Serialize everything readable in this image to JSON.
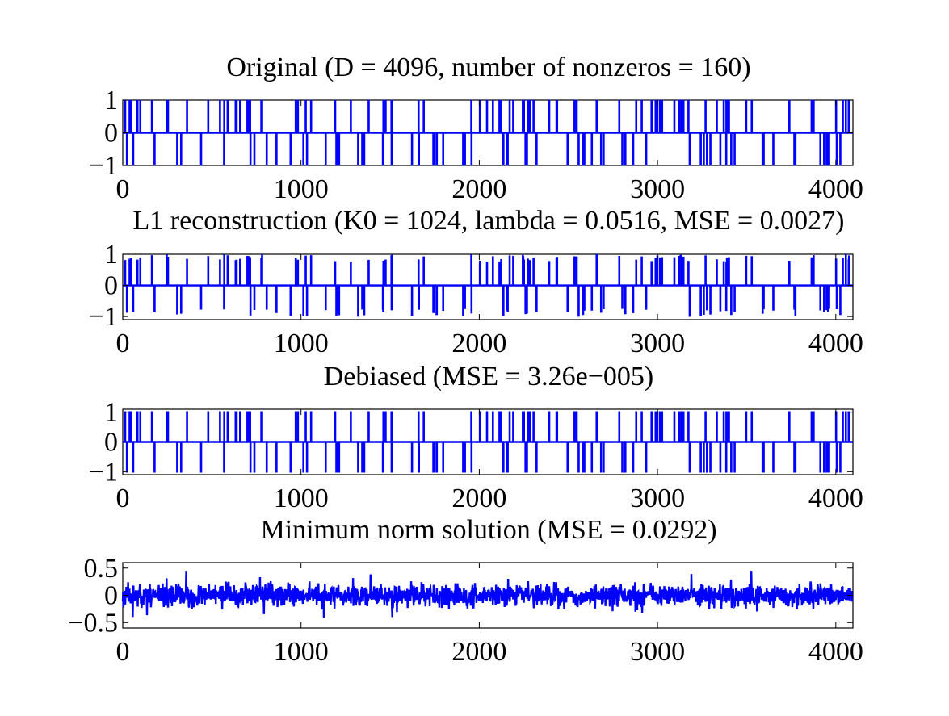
{
  "figure": {
    "line_color": "#0000ff",
    "background": "#ffffff"
  },
  "chart_data": [
    {
      "type": "line",
      "title": "Original (D = 4096, number of nonzeros = 160)",
      "xlim": [
        0,
        4096
      ],
      "ylim": [
        -1,
        1
      ],
      "xticks": [
        0,
        1000,
        2000,
        3000,
        4000
      ],
      "yticks": [
        -1,
        0,
        1
      ],
      "xtick_labels": [
        "0",
        "1000",
        "2000",
        "3000",
        "4000"
      ],
      "ytick_labels": [
        "−1",
        "0",
        "1"
      ],
      "signal": "sparse_spikes",
      "nonzeros": 160,
      "length": 4096,
      "series": [
        {
          "values_kind": "spikes of amplitude ±1 on zero baseline",
          "amplitude_scale": 1.0,
          "seed": 7
        }
      ]
    },
    {
      "type": "line",
      "title": "L1 reconstruction (K0 = 1024, lambda = 0.0516, MSE = 0.0027)",
      "xlim": [
        0,
        4096
      ],
      "ylim": [
        -1.1,
        1
      ],
      "xticks": [
        0,
        1000,
        2000,
        3000,
        4000
      ],
      "yticks": [
        -1,
        0,
        1
      ],
      "xtick_labels": [
        "0",
        "1000",
        "2000",
        "3000",
        "4000"
      ],
      "ytick_labels": [
        "−1",
        "0",
        "1"
      ],
      "signal": "sparse_spikes_shrunk",
      "nonzeros": 160,
      "length": 4096,
      "series": [
        {
          "values_kind": "shrunk spikes (~0.75–0.95) on zero baseline",
          "amplitude_scale": 0.85,
          "seed": 7
        }
      ]
    },
    {
      "type": "line",
      "title": "Debiased (MSE = 3.26e−005)",
      "xlim": [
        0,
        4096
      ],
      "ylim": [
        -1.1,
        1.1
      ],
      "xticks": [
        0,
        1000,
        2000,
        3000,
        4000
      ],
      "yticks": [
        -1,
        0,
        1
      ],
      "xtick_labels": [
        "0",
        "1000",
        "2000",
        "3000",
        "4000"
      ],
      "ytick_labels": [
        "−1",
        "0",
        "1"
      ],
      "signal": "sparse_spikes",
      "nonzeros": 160,
      "length": 4096,
      "series": [
        {
          "values_kind": "spikes of amplitude ±1 on zero baseline",
          "amplitude_scale": 1.0,
          "seed": 7
        }
      ]
    },
    {
      "type": "line",
      "title": "Minimum norm solution (MSE = 0.0292)",
      "xlim": [
        0,
        4096
      ],
      "ylim": [
        -0.6,
        0.6
      ],
      "xticks": [
        0,
        1000,
        2000,
        3000,
        4000
      ],
      "yticks": [
        -0.5,
        0,
        0.5
      ],
      "xtick_labels": [
        "0",
        "1000",
        "2000",
        "3000",
        "4000"
      ],
      "ytick_labels": [
        "−0.5",
        "0",
        "0.5"
      ],
      "signal": "dense_noise",
      "length": 4096,
      "series": [
        {
          "values_kind": "dense noise, std ~0.1, peaks ~±0.45",
          "amplitude_scale": 0.1,
          "seed": 11
        }
      ]
    }
  ]
}
